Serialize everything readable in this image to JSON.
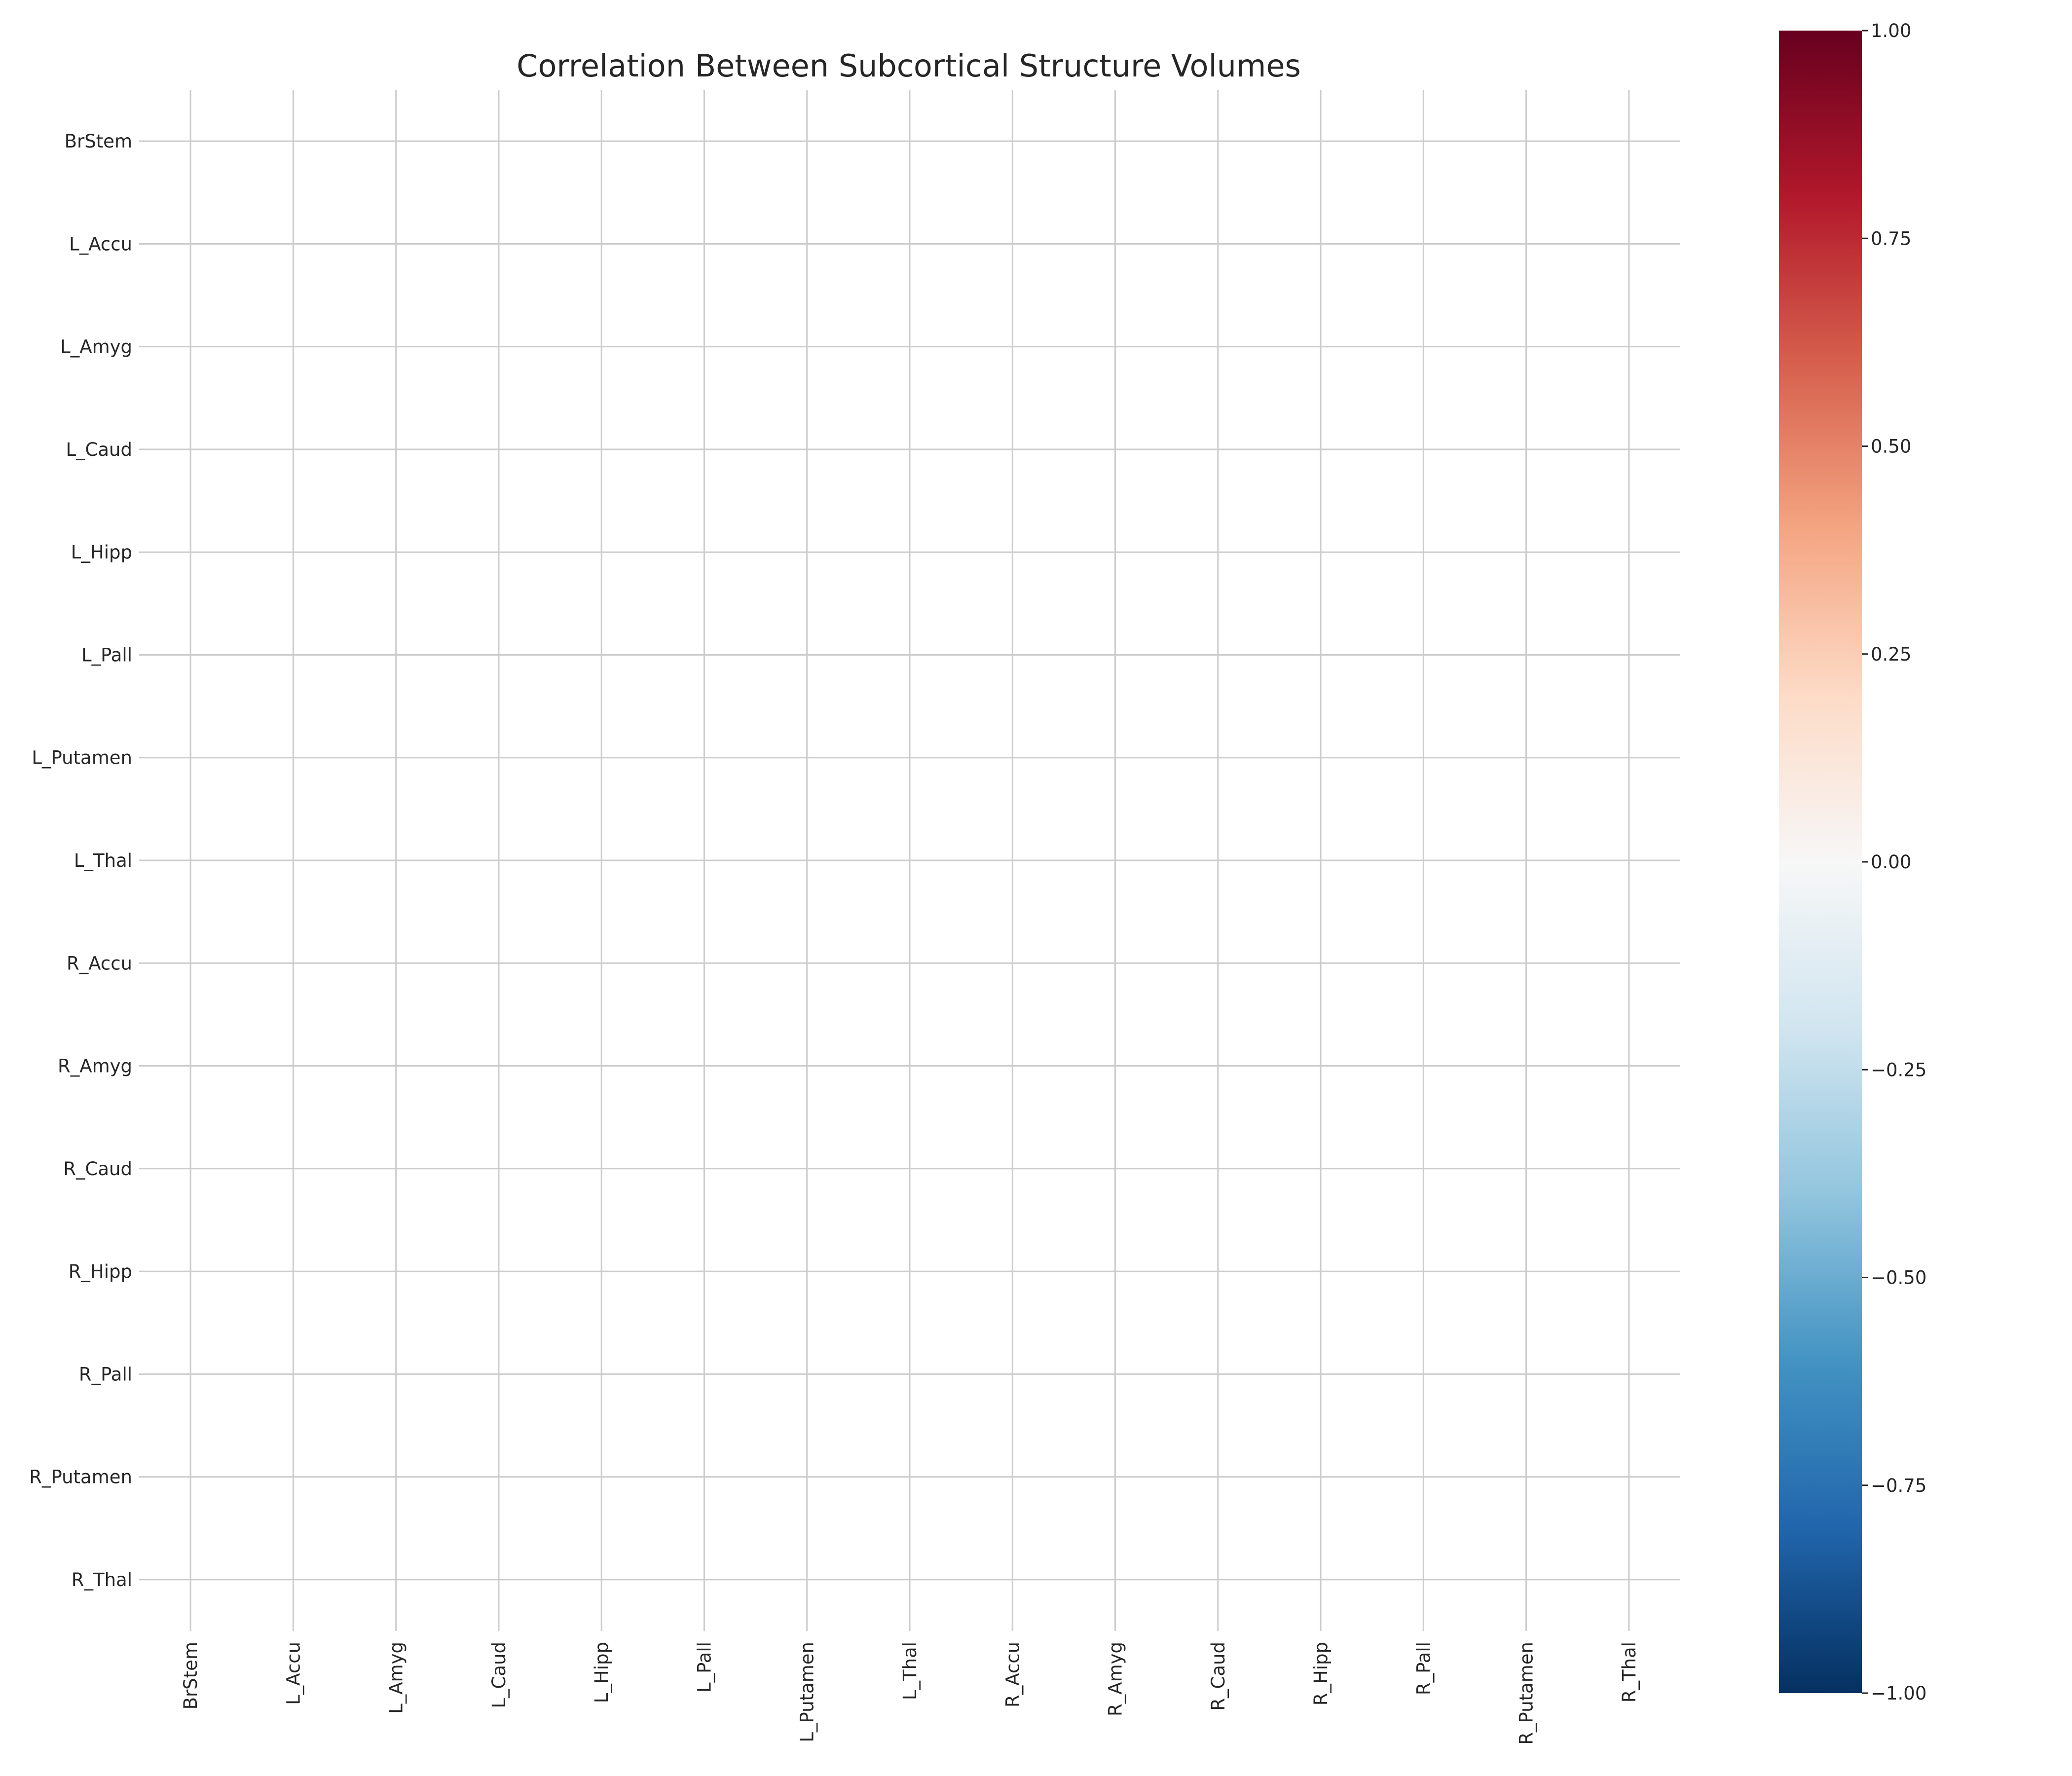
{
  "chart_data": {
    "type": "heatmap",
    "title": "Correlation Between Subcortical Structure Volumes",
    "xlabel": "",
    "ylabel": "",
    "rows": [
      "BrStem",
      "L_Accu",
      "L_Amyg",
      "L_Caud",
      "L_Hipp",
      "L_Pall",
      "L_Putamen",
      "L_Thal",
      "R_Accu",
      "R_Amyg",
      "R_Caud",
      "R_Hipp",
      "R_Pall",
      "R_Putamen",
      "R_Thal"
    ],
    "columns": [
      "BrStem",
      "L_Accu",
      "L_Amyg",
      "L_Caud",
      "L_Hipp",
      "L_Pall",
      "L_Putamen",
      "L_Thal",
      "R_Accu",
      "R_Amyg",
      "R_Caud",
      "R_Hipp",
      "R_Pall",
      "R_Putamen",
      "R_Thal"
    ],
    "values": [],
    "grid": true,
    "colorbar": {
      "colormap": "RdBu_r",
      "range": [
        -1.0,
        1.0
      ],
      "ticks": [
        "1.00",
        "0.75",
        "0.50",
        "0.25",
        "0.00",
        "−0.25",
        "−0.50",
        "−0.75",
        "−1.00"
      ],
      "tick_values": [
        1.0,
        0.75,
        0.5,
        0.25,
        0.0,
        -0.25,
        -0.5,
        -0.75,
        -1.0
      ],
      "colors": [
        "#053061",
        "#2166ac",
        "#4393c3",
        "#92c5de",
        "#d1e5f0",
        "#f7f7f7",
        "#fddbc7",
        "#f4a582",
        "#d6604d",
        "#b2182b",
        "#67001f"
      ]
    }
  }
}
